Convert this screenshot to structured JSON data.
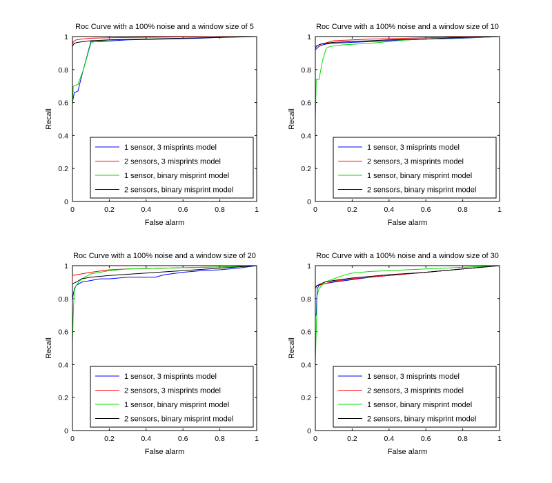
{
  "chart_data": [
    {
      "type": "line",
      "title": "Roc Curve with a 100% noise and a window size of 5",
      "xlabel": "False alarm",
      "ylabel": "Recall",
      "xlim": [
        0,
        1
      ],
      "ylim": [
        0,
        1
      ],
      "xticks": [
        "0",
        "0.2",
        "0.4",
        "0.6",
        "0.8",
        "1"
      ],
      "yticks": [
        "0",
        "0.2",
        "0.4",
        "0.6",
        "0.8",
        "1"
      ],
      "legend_position": "bottom-right",
      "series": [
        {
          "name": "1 sensor, 3 misprints model",
          "color": "#0000ff",
          "x": [
            0,
            0,
            0.01,
            0.03,
            0.05,
            0.1,
            0.15,
            0.3,
            0.5,
            0.7,
            0.9,
            1
          ],
          "y": [
            0,
            0.6,
            0.66,
            0.67,
            0.76,
            0.97,
            0.97,
            0.98,
            0.985,
            0.99,
            1,
            1
          ]
        },
        {
          "name": "2 sensors, 3 misprints model",
          "color": "#ff0000",
          "x": [
            0,
            0,
            0.005,
            0.02,
            0.05,
            0.1,
            0.2,
            0.4,
            0.6,
            0.8,
            1
          ],
          "y": [
            0,
            0.95,
            0.97,
            0.98,
            0.985,
            0.99,
            0.993,
            0.996,
            0.998,
            1,
            1
          ]
        },
        {
          "name": "1 sensor, binary misprint model",
          "color": "#00dd00",
          "x": [
            0,
            0,
            0.005,
            0.03,
            0.06,
            0.1,
            0.12,
            0.2,
            0.4,
            0.6,
            0.8,
            1
          ],
          "y": [
            0,
            0.58,
            0.7,
            0.71,
            0.8,
            0.96,
            0.97,
            0.98,
            0.985,
            0.99,
            0.995,
            1
          ]
        },
        {
          "name": "2 sensors, binary misprint model",
          "color": "#000000",
          "x": [
            0,
            0,
            0.01,
            0.03,
            0.06,
            0.1,
            0.2,
            0.4,
            0.6,
            0.8,
            1
          ],
          "y": [
            0,
            0.94,
            0.96,
            0.965,
            0.97,
            0.975,
            0.98,
            0.985,
            0.99,
            0.995,
            1
          ]
        }
      ]
    },
    {
      "type": "line",
      "title": "Roc Curve with a 100% noise and a window size of 10",
      "xlabel": "False alarm",
      "ylabel": "Recall",
      "xlim": [
        0,
        1
      ],
      "ylim": [
        0,
        1
      ],
      "xticks": [
        "0",
        "0.2",
        "0.4",
        "0.6",
        "0.8",
        "1"
      ],
      "yticks": [
        "0",
        "0.2",
        "0.4",
        "0.6",
        "0.8",
        "1"
      ],
      "legend_position": "bottom-right",
      "series": [
        {
          "name": "1 sensor, 3 misprints model",
          "color": "#0000ff",
          "x": [
            0,
            0,
            0.01,
            0.02,
            0.04,
            0.06,
            0.1,
            0.2,
            0.4,
            0.6,
            0.8,
            1
          ],
          "y": [
            0,
            0.92,
            0.93,
            0.94,
            0.95,
            0.955,
            0.96,
            0.965,
            0.975,
            0.985,
            0.99,
            1
          ]
        },
        {
          "name": "2 sensors, 3 misprints model",
          "color": "#ff0000",
          "x": [
            0,
            0,
            0.02,
            0.05,
            0.1,
            0.2,
            0.3,
            0.5,
            0.7,
            0.9,
            1
          ],
          "y": [
            0,
            0.94,
            0.95,
            0.96,
            0.975,
            0.98,
            0.985,
            0.99,
            0.995,
            1,
            1
          ]
        },
        {
          "name": "1 sensor, binary misprint model",
          "color": "#00dd00",
          "x": [
            0,
            0,
            0.005,
            0.02,
            0.04,
            0.06,
            0.08,
            0.15,
            0.3,
            0.5,
            0.7,
            0.9,
            1
          ],
          "y": [
            0,
            0.49,
            0.74,
            0.74,
            0.86,
            0.93,
            0.94,
            0.95,
            0.96,
            0.98,
            0.99,
            0.995,
            1
          ]
        },
        {
          "name": "2 sensors, binary misprint model",
          "color": "#000000",
          "x": [
            0,
            0,
            0.01,
            0.03,
            0.06,
            0.1,
            0.2,
            0.4,
            0.6,
            0.8,
            1
          ],
          "y": [
            0,
            0.93,
            0.945,
            0.955,
            0.96,
            0.965,
            0.97,
            0.98,
            0.985,
            0.995,
            1
          ]
        }
      ]
    },
    {
      "type": "line",
      "title": "Roc Curve with a 100% noise and a window size of 20",
      "xlabel": "False alarm",
      "ylabel": "Recall",
      "xlim": [
        0,
        1
      ],
      "ylim": [
        0,
        1
      ],
      "xticks": [
        "0",
        "0.2",
        "0.4",
        "0.6",
        "0.8",
        "1"
      ],
      "yticks": [
        "0",
        "0.2",
        "0.4",
        "0.6",
        "0.8",
        "1"
      ],
      "legend_position": "bottom-right",
      "series": [
        {
          "name": "1 sensor, 3 misprints model",
          "color": "#0000ff",
          "x": [
            0,
            0,
            0.01,
            0.02,
            0.05,
            0.1,
            0.15,
            0.2,
            0.3,
            0.45,
            0.5,
            0.6,
            0.7,
            0.8,
            0.9,
            1
          ],
          "y": [
            0,
            0.8,
            0.86,
            0.88,
            0.9,
            0.91,
            0.92,
            0.92,
            0.93,
            0.93,
            0.945,
            0.96,
            0.97,
            0.975,
            0.985,
            1
          ]
        },
        {
          "name": "2 sensors, 3 misprints model",
          "color": "#ff0000",
          "x": [
            0,
            0,
            0.05,
            0.1,
            0.2,
            0.3,
            0.5,
            0.7,
            0.9,
            1
          ],
          "y": [
            0,
            0.94,
            0.95,
            0.96,
            0.975,
            0.98,
            0.985,
            0.99,
            0.995,
            1
          ]
        },
        {
          "name": "1 sensor, binary misprint model",
          "color": "#00dd00",
          "x": [
            0,
            0,
            0.005,
            0.01,
            0.02,
            0.05,
            0.1,
            0.2,
            0.3,
            0.5,
            0.7,
            0.9,
            1
          ],
          "y": [
            0,
            0.53,
            0.72,
            0.85,
            0.88,
            0.92,
            0.95,
            0.97,
            0.98,
            0.985,
            0.99,
            0.995,
            1
          ]
        },
        {
          "name": "2 sensors, binary misprint model",
          "color": "#000000",
          "x": [
            0,
            0,
            0.02,
            0.05,
            0.1,
            0.2,
            0.4,
            0.6,
            0.8,
            1
          ],
          "y": [
            0,
            0.89,
            0.9,
            0.92,
            0.93,
            0.94,
            0.955,
            0.97,
            0.985,
            1
          ]
        }
      ]
    },
    {
      "type": "line",
      "title": "Roc Curve with a 100% noise and a window size of 30",
      "xlabel": "False alarm",
      "ylabel": "Recall",
      "xlim": [
        0,
        1
      ],
      "ylim": [
        0,
        1
      ],
      "xticks": [
        "0",
        "0.2",
        "0.4",
        "0.6",
        "0.8",
        "1"
      ],
      "yticks": [
        "0",
        "0.2",
        "0.4",
        "0.6",
        "0.8",
        "1"
      ],
      "legend_position": "bottom-right",
      "series": [
        {
          "name": "1 sensor, 3 misprints model",
          "color": "#0000ff",
          "x": [
            0,
            0,
            0.005,
            0.01,
            0.02,
            0.05,
            0.1,
            0.2,
            0.3,
            0.4,
            0.5,
            0.6,
            0.7,
            0.8,
            0.9,
            1
          ],
          "y": [
            0,
            0.7,
            0.7,
            0.86,
            0.88,
            0.89,
            0.9,
            0.915,
            0.93,
            0.94,
            0.95,
            0.96,
            0.97,
            0.98,
            0.99,
            1
          ]
        },
        {
          "name": "2 sensors, 3 misprints model",
          "color": "#ff0000",
          "x": [
            0,
            0,
            0.01,
            0.05,
            0.1,
            0.2,
            0.3,
            0.4,
            0.5,
            0.6,
            0.7,
            0.8,
            0.9,
            1
          ],
          "y": [
            0,
            0.86,
            0.88,
            0.89,
            0.905,
            0.92,
            0.93,
            0.94,
            0.95,
            0.96,
            0.97,
            0.98,
            0.99,
            1
          ]
        },
        {
          "name": "1 sensor, binary misprint model",
          "color": "#00dd00",
          "x": [
            0,
            0,
            0.005,
            0.01,
            0.02,
            0.05,
            0.1,
            0.15,
            0.2,
            0.3,
            0.4,
            0.5,
            0.6,
            0.7,
            0.8,
            0.9,
            1
          ],
          "y": [
            0,
            0.42,
            0.6,
            0.82,
            0.86,
            0.9,
            0.92,
            0.94,
            0.955,
            0.965,
            0.97,
            0.975,
            0.98,
            0.985,
            0.99,
            0.995,
            1
          ]
        },
        {
          "name": "2 sensors, binary misprint model",
          "color": "#000000",
          "x": [
            0,
            0,
            0.01,
            0.05,
            0.1,
            0.2,
            0.4,
            0.6,
            0.8,
            1
          ],
          "y": [
            0,
            0.87,
            0.88,
            0.9,
            0.91,
            0.925,
            0.945,
            0.96,
            0.98,
            1
          ]
        }
      ]
    }
  ]
}
